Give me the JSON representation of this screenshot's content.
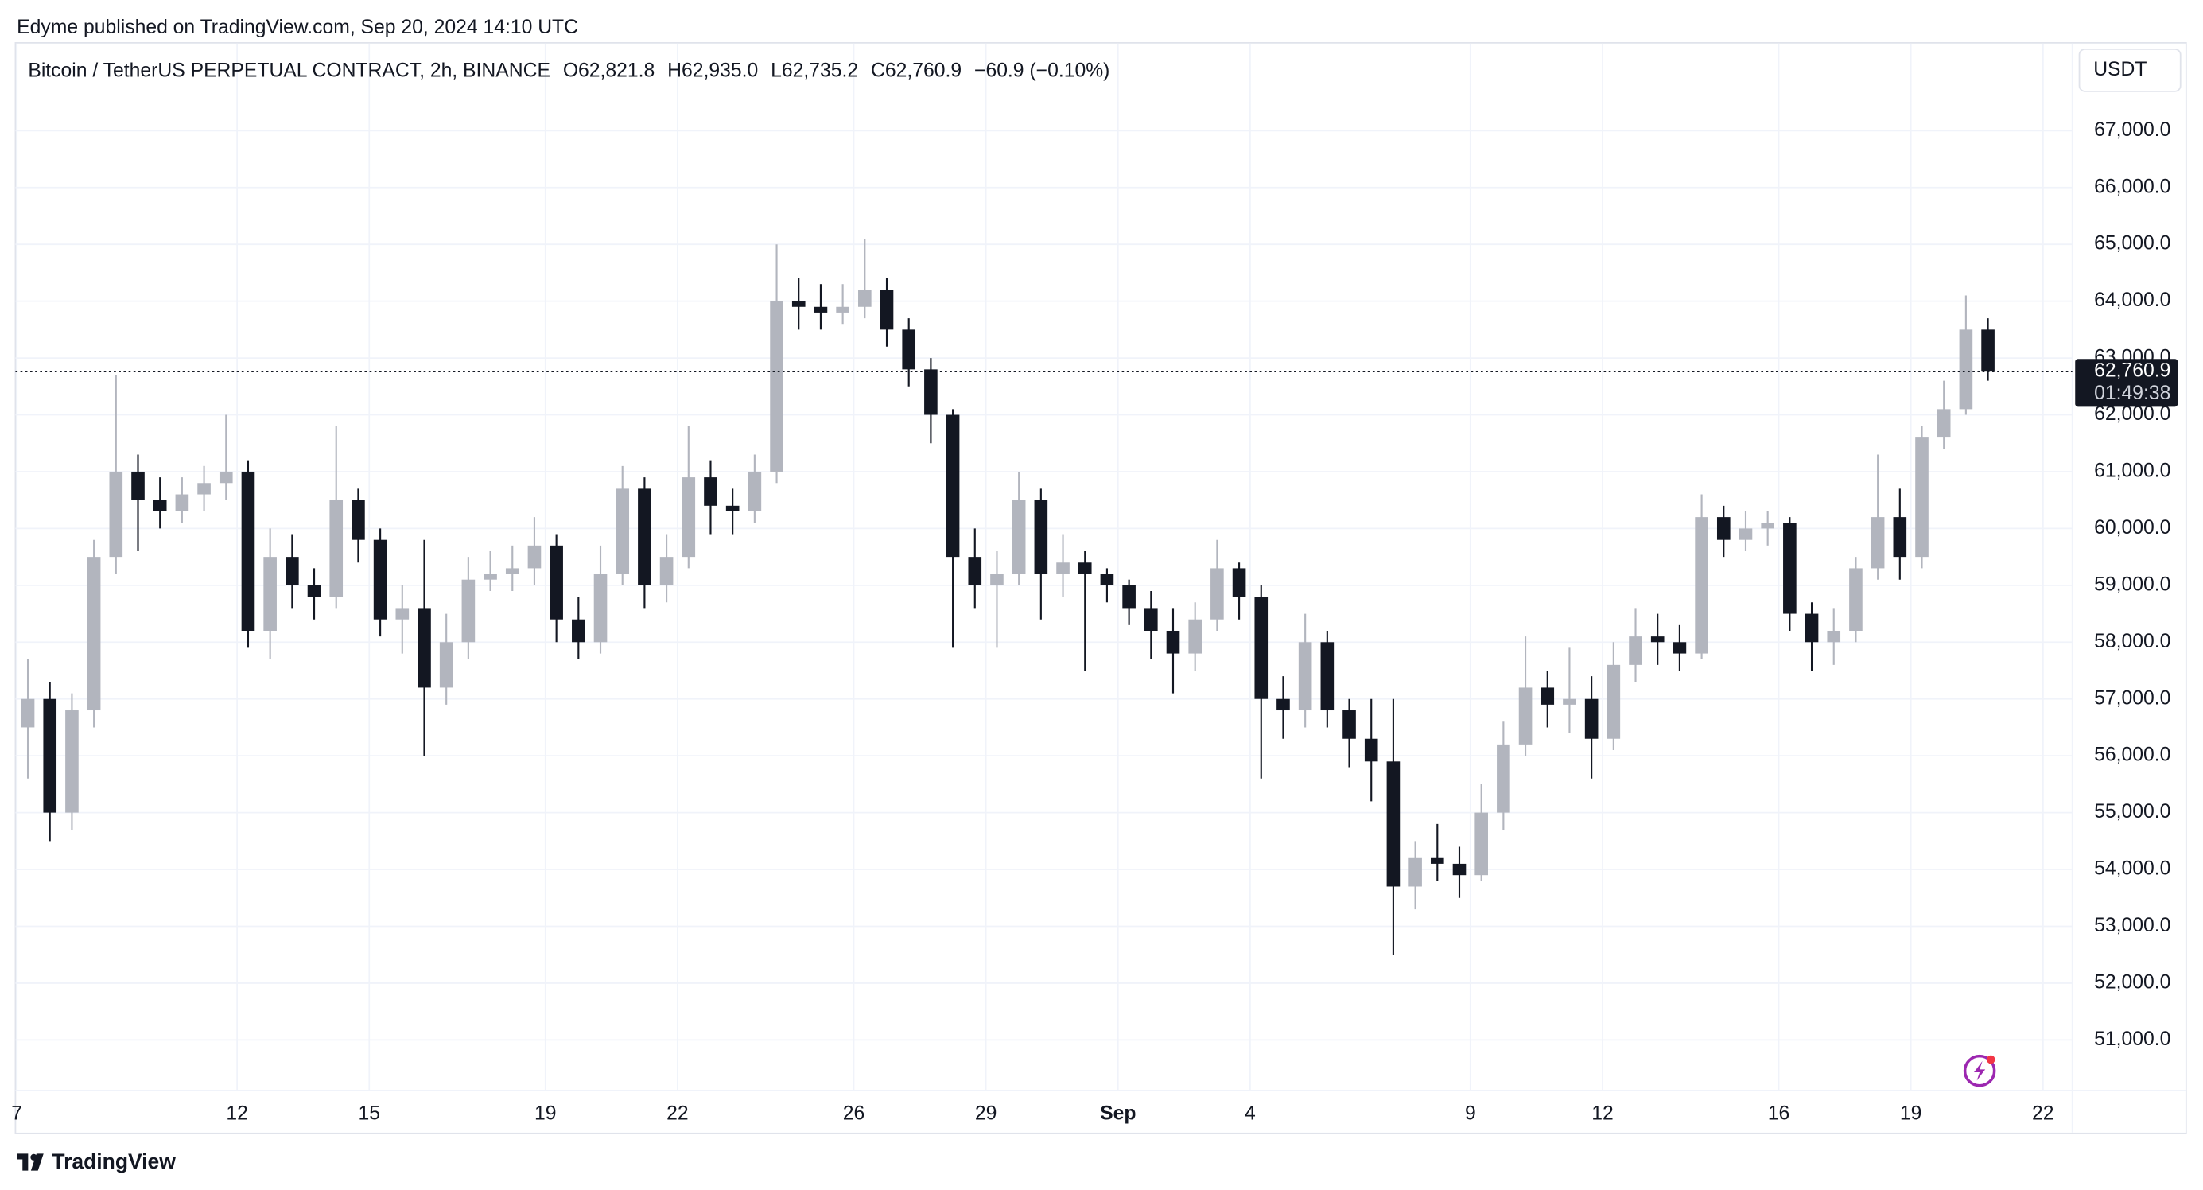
{
  "publisher": "Edyme published on TradingView.com, Sep 20, 2024 14:10 UTC",
  "footer_brand": "TradingView",
  "chart_data": {
    "type": "candlestick",
    "title": "Bitcoin / TetherUS PERPETUAL CONTRACT, 2h, BINANCE",
    "header_ohlc": [
      "O62,821.8",
      "H62,935.0",
      "L62,735.2",
      "C62,760.9",
      "−60.9 (−0.10%)"
    ],
    "currency": "USDT",
    "up_color": "#b2b5be",
    "down_color": "#131722",
    "grid": true,
    "last_price": {
      "value": 62760.9,
      "label": "62,760.9"
    },
    "countdown": "01:49:38",
    "xlim": [
      0,
      46.73
    ],
    "ylim": [
      49344,
      68558
    ],
    "xticks": [
      {
        "value": 0,
        "label": "7"
      },
      {
        "value": 5,
        "label": "12"
      },
      {
        "value": 8,
        "label": "15"
      },
      {
        "value": 12,
        "label": "19"
      },
      {
        "value": 15,
        "label": "22"
      },
      {
        "value": 19,
        "label": "26"
      },
      {
        "value": 22,
        "label": "29"
      },
      {
        "value": 25,
        "label": "Sep"
      },
      {
        "value": 28,
        "label": "4"
      },
      {
        "value": 33,
        "label": "9"
      },
      {
        "value": 36,
        "label": "12"
      },
      {
        "value": 40,
        "label": "16"
      },
      {
        "value": 43,
        "label": "19"
      },
      {
        "value": 46,
        "label": "22"
      }
    ],
    "yticks": [
      {
        "value": 51000,
        "label": "51,000.0"
      },
      {
        "value": 52000,
        "label": "52,000.0"
      },
      {
        "value": 53000,
        "label": "53,000.0"
      },
      {
        "value": 54000,
        "label": "54,000.0"
      },
      {
        "value": 55000,
        "label": "55,000.0"
      },
      {
        "value": 56000,
        "label": "56,000.0"
      },
      {
        "value": 57000,
        "label": "57,000.0"
      },
      {
        "value": 58000,
        "label": "58,000.0"
      },
      {
        "value": 59000,
        "label": "59,000.0"
      },
      {
        "value": 60000,
        "label": "60,000.0"
      },
      {
        "value": 61000,
        "label": "61,000.0"
      },
      {
        "value": 62000,
        "label": "62,000.0"
      },
      {
        "value": 63000,
        "label": "63,000.0"
      },
      {
        "value": 64000,
        "label": "64,000.0"
      },
      {
        "value": 65000,
        "label": "65,000.0"
      },
      {
        "value": 66000,
        "label": "66,000.0"
      },
      {
        "value": 67000,
        "label": "67,000.0"
      }
    ],
    "x": [
      0.25,
      0.75,
      1.25,
      1.75,
      2.25,
      2.75,
      3.25,
      3.75,
      4.25,
      4.75,
      5.25,
      5.75,
      6.25,
      6.75,
      7.25,
      7.75,
      8.25,
      8.75,
      9.25,
      9.75,
      10.25,
      10.75,
      11.25,
      11.75,
      12.25,
      12.75,
      13.25,
      13.75,
      14.25,
      14.75,
      15.25,
      15.75,
      16.25,
      16.75,
      17.25,
      17.75,
      18.25,
      18.75,
      19.25,
      19.75,
      20.25,
      20.75,
      21.25,
      21.75,
      22.25,
      22.75,
      23.25,
      23.75,
      24.25,
      24.75,
      25.25,
      25.75,
      26.25,
      26.75,
      27.25,
      27.75,
      28.25,
      28.75,
      29.25,
      29.75,
      30.25,
      30.75,
      31.25,
      31.75,
      32.25,
      32.75,
      33.25,
      33.75,
      34.25,
      34.75,
      35.25,
      35.75,
      36.25,
      36.75,
      37.25,
      37.75,
      38.25,
      38.75,
      39.25,
      39.75,
      40.25,
      40.75,
      41.25,
      41.75,
      42.25,
      42.75,
      43.25,
      43.75,
      44.25,
      44.75
    ],
    "open": [
      56500,
      57000,
      55000,
      56800,
      59500,
      61000,
      60500,
      60300,
      60600,
      60800,
      61000,
      58200,
      59500,
      59000,
      58800,
      60500,
      59800,
      58400,
      58600,
      57200,
      58000,
      59100,
      59200,
      59300,
      59700,
      58400,
      58000,
      59200,
      60700,
      59000,
      59500,
      60900,
      60400,
      60300,
      61000,
      64000,
      63900,
      63800,
      63900,
      64200,
      63500,
      62800,
      62000,
      59500,
      59000,
      59200,
      60500,
      59200,
      59400,
      59200,
      59000,
      58600,
      58200,
      57800,
      58400,
      59300,
      58800,
      57000,
      56800,
      58000,
      56800,
      56300,
      55900,
      53700,
      54200,
      54100,
      53900,
      55000,
      56200,
      57200,
      56900,
      57000,
      56300,
      57600,
      58100,
      58000,
      57800,
      60200,
      59800,
      60000,
      60100,
      58500,
      58000,
      58200,
      59300,
      60200,
      59500,
      61600,
      62100,
      63500
    ],
    "high": [
      57700,
      57300,
      57100,
      59800,
      62700,
      61300,
      60900,
      60900,
      61100,
      62000,
      61200,
      60000,
      59900,
      59300,
      61800,
      60700,
      60000,
      59000,
      59800,
      58500,
      59500,
      59600,
      59700,
      60200,
      59900,
      58800,
      59700,
      61100,
      60900,
      59900,
      61800,
      61200,
      60700,
      61300,
      65000,
      64400,
      64300,
      64300,
      65100,
      64400,
      63700,
      63000,
      62100,
      60000,
      59600,
      61000,
      60700,
      59900,
      59600,
      59300,
      59100,
      58900,
      58600,
      58700,
      59800,
      59400,
      59000,
      57400,
      58500,
      58200,
      57000,
      57000,
      57000,
      54500,
      54800,
      54400,
      55500,
      56600,
      58100,
      57500,
      57900,
      57400,
      58000,
      58600,
      58500,
      58300,
      60600,
      60400,
      60300,
      60300,
      60200,
      58700,
      58600,
      59500,
      61300,
      60700,
      61800,
      62600,
      64100,
      63700
    ],
    "low": [
      55600,
      54500,
      54700,
      56500,
      59200,
      59600,
      60000,
      60100,
      60300,
      60500,
      57900,
      57700,
      58600,
      58400,
      58600,
      59400,
      58100,
      57800,
      56000,
      56900,
      57700,
      58900,
      58900,
      59000,
      58000,
      57700,
      57800,
      59000,
      58600,
      58700,
      59300,
      59900,
      59900,
      60100,
      60800,
      63500,
      63500,
      63600,
      63700,
      63200,
      62500,
      61500,
      57900,
      58600,
      57900,
      59000,
      58400,
      58800,
      57500,
      58700,
      58300,
      57700,
      57100,
      57500,
      58200,
      58400,
      55600,
      56300,
      56500,
      56500,
      55800,
      55200,
      52500,
      53300,
      53800,
      53500,
      53800,
      54700,
      56000,
      56500,
      56400,
      55600,
      56100,
      57300,
      57600,
      57500,
      57700,
      59500,
      59600,
      59700,
      58200,
      57500,
      57600,
      58000,
      59100,
      59100,
      59300,
      61400,
      62000,
      62600
    ],
    "close": [
      57000,
      55000,
      56800,
      59500,
      61000,
      60500,
      60300,
      60600,
      60800,
      61000,
      58200,
      59500,
      59000,
      58800,
      60500,
      59800,
      58400,
      58600,
      57200,
      58000,
      59100,
      59200,
      59300,
      59700,
      58400,
      58000,
      59200,
      60700,
      59000,
      59500,
      60900,
      60400,
      60300,
      61000,
      64000,
      63900,
      63800,
      63900,
      64200,
      63500,
      62800,
      62000,
      59500,
      59000,
      59200,
      60500,
      59200,
      59400,
      59200,
      59000,
      58600,
      58200,
      57800,
      58400,
      59300,
      58800,
      57000,
      56800,
      58000,
      56800,
      56300,
      55900,
      53700,
      54200,
      54100,
      53900,
      55000,
      56200,
      57200,
      56900,
      57000,
      56300,
      57600,
      58100,
      58000,
      57800,
      60200,
      59800,
      60000,
      60100,
      58500,
      58000,
      58200,
      59300,
      60200,
      59500,
      61600,
      62100,
      63500,
      62760.9
    ]
  }
}
